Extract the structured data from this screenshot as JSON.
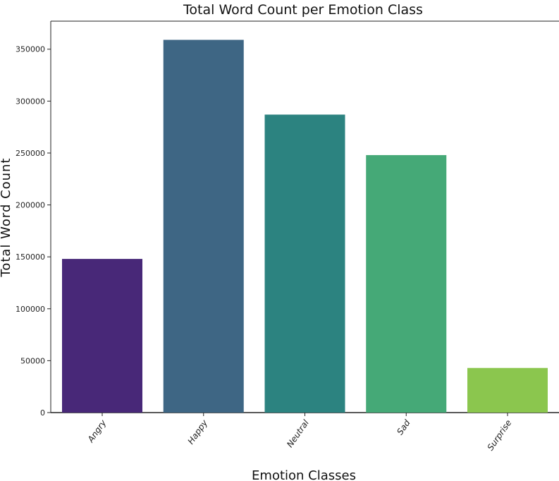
{
  "chart_data": {
    "type": "bar",
    "title": "Total Word Count per Emotion Class",
    "xlabel": "Emotion Classes",
    "ylabel": "Total Word Count",
    "categories": [
      "Angry",
      "Happy",
      "Neutral",
      "Sad",
      "Surprise"
    ],
    "values": [
      148000,
      359000,
      287000,
      248000,
      43000
    ],
    "colors": [
      "#482878",
      "#3e6684",
      "#2c8380",
      "#45a977",
      "#8bc64e"
    ],
    "yticks": [
      0,
      50000,
      100000,
      150000,
      200000,
      250000,
      300000,
      350000
    ],
    "ylim": [
      0,
      377000
    ],
    "grid": false,
    "legend": "none"
  }
}
